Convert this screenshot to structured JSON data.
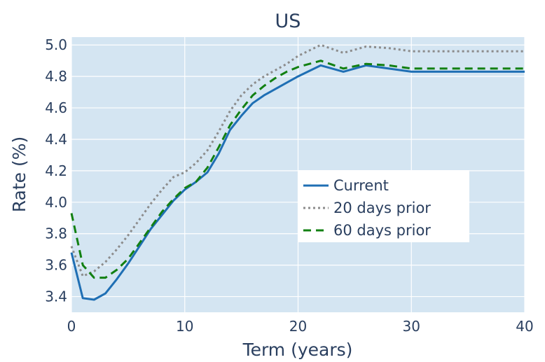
{
  "chart_data": {
    "type": "line",
    "title": "US",
    "xlabel": "Term (years)",
    "ylabel": "Rate (%)",
    "xlim": [
      0,
      40
    ],
    "ylim": [
      3.3,
      5.05
    ],
    "x_ticks": [
      0,
      10,
      20,
      30,
      40
    ],
    "y_ticks": [
      3.4,
      3.6,
      3.8,
      4.0,
      4.2,
      4.4,
      4.6,
      4.8,
      5.0
    ],
    "grid": true,
    "legend_position": "center-right",
    "colors": {
      "plot_bg": "#d4e5f2",
      "grid": "#ffffff"
    },
    "series": [
      {
        "name": "Current",
        "color": "#1f6fb4",
        "dash": "solid",
        "x": [
          0,
          1,
          2,
          3,
          4,
          5,
          6,
          7,
          8,
          9,
          10,
          11,
          12,
          13,
          14,
          15,
          16,
          17,
          18,
          19,
          20,
          22,
          24,
          26,
          28,
          30,
          35,
          40
        ],
        "y": [
          3.68,
          3.39,
          3.38,
          3.42,
          3.51,
          3.61,
          3.72,
          3.83,
          3.92,
          4.01,
          4.08,
          4.13,
          4.19,
          4.31,
          4.46,
          4.55,
          4.63,
          4.68,
          4.72,
          4.76,
          4.8,
          4.87,
          4.83,
          4.87,
          4.85,
          4.83,
          4.83,
          4.83
        ]
      },
      {
        "name": "20 days prior",
        "color": "#8c8c8c",
        "dash": "dot",
        "x": [
          0,
          1,
          2,
          3,
          4,
          5,
          6,
          7,
          8,
          9,
          10,
          11,
          12,
          13,
          14,
          15,
          16,
          17,
          18,
          19,
          20,
          22,
          24,
          26,
          28,
          30,
          35,
          40
        ],
        "y": [
          3.72,
          3.53,
          3.56,
          3.62,
          3.7,
          3.79,
          3.89,
          3.99,
          4.08,
          4.16,
          4.19,
          4.25,
          4.33,
          4.45,
          4.58,
          4.68,
          4.75,
          4.8,
          4.84,
          4.88,
          4.93,
          5.0,
          4.95,
          4.99,
          4.98,
          4.96,
          4.96,
          4.96
        ]
      },
      {
        "name": "60 days prior",
        "color": "#128012",
        "dash": "dash",
        "x": [
          0,
          1,
          2,
          3,
          4,
          5,
          6,
          7,
          8,
          9,
          10,
          11,
          12,
          13,
          14,
          15,
          16,
          17,
          18,
          19,
          20,
          22,
          24,
          26,
          28,
          30,
          35,
          40
        ],
        "y": [
          3.93,
          3.6,
          3.52,
          3.52,
          3.57,
          3.64,
          3.74,
          3.84,
          3.94,
          4.02,
          4.09,
          4.13,
          4.22,
          4.35,
          4.49,
          4.59,
          4.68,
          4.74,
          4.79,
          4.83,
          4.86,
          4.9,
          4.85,
          4.88,
          4.87,
          4.85,
          4.85,
          4.85
        ]
      }
    ]
  }
}
